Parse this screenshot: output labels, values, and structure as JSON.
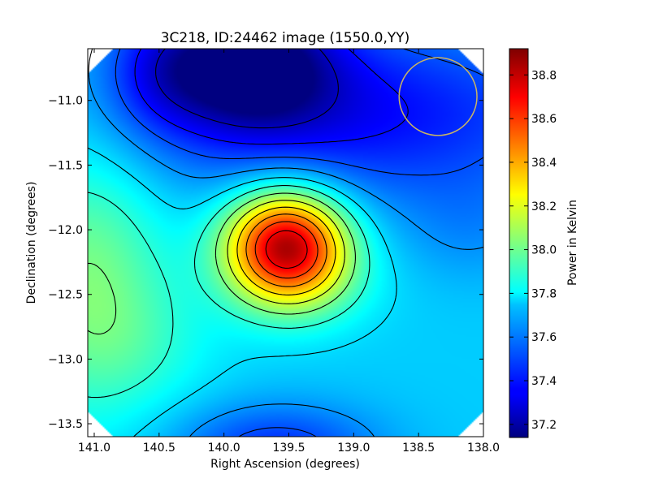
{
  "chart_data": {
    "type": "heatmap",
    "title": "3C218, ID:24462 image (1550.0,YY)",
    "xlabel": "Right Ascension (degrees)",
    "ylabel": "Declination (degrees)",
    "colorbar_label": "Power in Kelvin",
    "xlim": [
      141.05,
      138.0
    ],
    "ylim": [
      -13.6,
      -10.6
    ],
    "x_ticks": [
      141.0,
      140.5,
      140.0,
      139.5,
      139.0,
      138.5,
      138.0
    ],
    "x_tick_labels": [
      "141.0",
      "140.5",
      "140.0",
      "139.5",
      "139.0",
      "138.5",
      "138.0"
    ],
    "y_ticks": [
      -11.0,
      -11.5,
      -12.0,
      -12.5,
      -13.0,
      -13.5
    ],
    "y_tick_labels": [
      "−11.0",
      "−11.5",
      "−12.0",
      "−12.5",
      "−13.0",
      "−13.5"
    ],
    "colorbar_range": [
      37.14,
      38.92
    ],
    "colorbar_ticks": [
      37.2,
      37.4,
      37.6,
      37.8,
      38.0,
      38.2,
      38.4,
      38.6,
      38.8
    ],
    "colorbar_tick_labels": [
      "37.2",
      "37.4",
      "37.6",
      "37.8",
      "38.0",
      "38.2",
      "38.4",
      "38.6",
      "38.8"
    ],
    "colormap": "jet",
    "peak": {
      "ra": 139.52,
      "dec": -12.12,
      "value": 38.9
    },
    "minimum": {
      "ra": 139.8,
      "dec": -10.75,
      "value": 37.15
    },
    "beam_circle": {
      "ra": 138.35,
      "dec": -10.97,
      "radius_deg": 0.3,
      "color": "#c8b464"
    },
    "contour_levels": [
      37.25,
      37.38,
      37.5,
      37.62,
      37.75,
      37.88,
      38.02,
      38.16,
      38.3,
      38.44,
      38.58,
      38.72,
      38.86
    ],
    "contour_color": "#000000",
    "grid": false
  }
}
